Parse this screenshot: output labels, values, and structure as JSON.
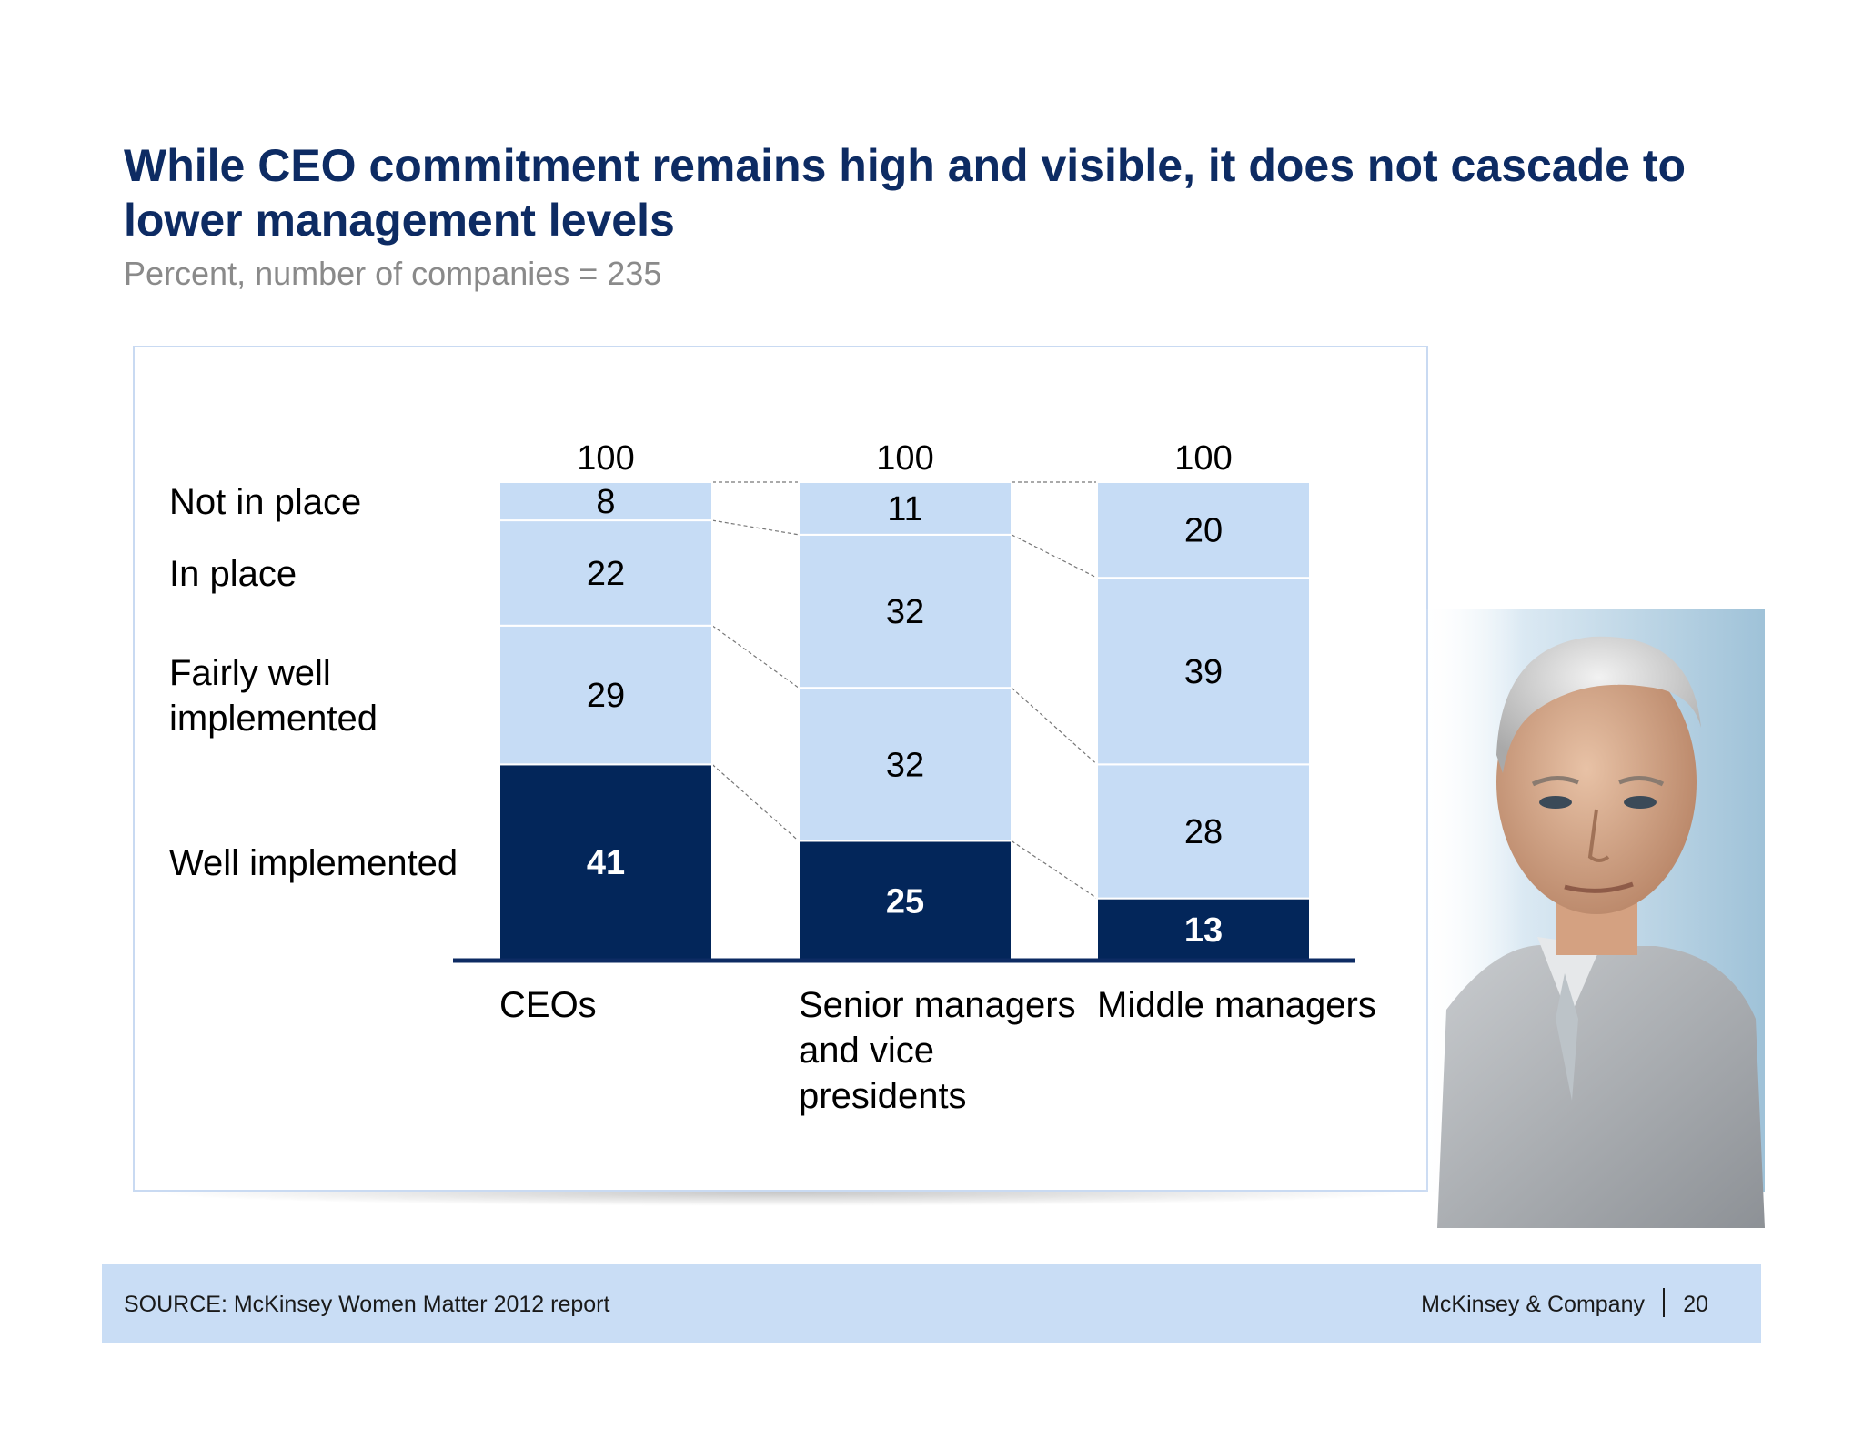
{
  "slide": {
    "title": "While CEO commitment remains high and visible, it does not cascade to lower management levels",
    "subtitle": "Percent, number of companies = 235"
  },
  "chart_data": {
    "type": "bar",
    "stacked": true,
    "categories": [
      "CEOs",
      "Senior managers and vice presidents",
      "Middle managers"
    ],
    "category_lines": [
      [
        "CEOs"
      ],
      [
        "Senior managers",
        "and vice",
        "presidents"
      ],
      [
        "Middle managers"
      ]
    ],
    "totals": [
      100,
      100,
      100
    ],
    "series": [
      {
        "name": "Well implemented",
        "values": [
          41,
          25,
          13
        ],
        "color": "#03265a",
        "label_color": "#ffffff",
        "label_bold": true,
        "legend_lines": [
          "Well implemented"
        ]
      },
      {
        "name": "Fairly well implemented",
        "values": [
          29,
          32,
          28
        ],
        "color": "#c6dcf5",
        "label_color": "#000000",
        "label_bold": false,
        "legend_lines": [
          "Fairly well",
          "implemented"
        ]
      },
      {
        "name": "In place",
        "values": [
          22,
          32,
          39
        ],
        "color": "#c6dcf5",
        "label_color": "#000000",
        "label_bold": false,
        "legend_lines": [
          "In place"
        ]
      },
      {
        "name": "Not in place",
        "values": [
          8,
          11,
          20
        ],
        "color": "#c6dcf5",
        "label_color": "#000000",
        "label_bold": false,
        "legend_lines": [
          "Not in place"
        ]
      }
    ],
    "ylim": [
      0,
      100
    ],
    "connector_lines": true,
    "legend": "left"
  },
  "footer": {
    "source": "SOURCE: McKinsey Women Matter 2012 report",
    "brand": "McKinsey & Company",
    "page": "20"
  },
  "colors": {
    "title": "#0d2b63",
    "dark_segment": "#03265a",
    "light_segment": "#c6dcf5",
    "footer_band": "#c9ddf5"
  }
}
